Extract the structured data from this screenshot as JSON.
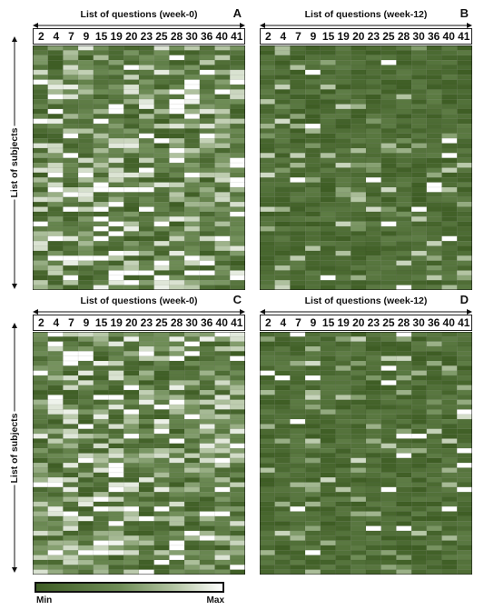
{
  "axis_labels": {
    "row_axis": "List of subjects",
    "legend_min": "Min",
    "legend_max": "Max"
  },
  "questions": [
    "2",
    "4",
    "7",
    "9",
    "15",
    "19",
    "20",
    "23",
    "25",
    "28",
    "30",
    "36",
    "40",
    "41"
  ],
  "colors": {
    "min": "#3e5d24",
    "mid": "#7f9c68",
    "max": "#ffffff",
    "grid": "#1f2a16"
  },
  "panels": [
    {
      "letter": "A",
      "title": "List of questions (week-0)",
      "profile": "high"
    },
    {
      "letter": "B",
      "title": "List of questions (week-12)",
      "profile": "low"
    },
    {
      "letter": "C",
      "title": "List of questions (week-0)",
      "profile": "high"
    },
    {
      "letter": "D",
      "title": "List of questions (week-12)",
      "profile": "low"
    }
  ],
  "chart_data": {
    "type": "heatmap",
    "x": [
      "2",
      "4",
      "7",
      "9",
      "15",
      "19",
      "20",
      "23",
      "25",
      "28",
      "30",
      "36",
      "40",
      "41"
    ],
    "subjects": 50,
    "scale": [
      "Min",
      "Max"
    ]
  }
}
